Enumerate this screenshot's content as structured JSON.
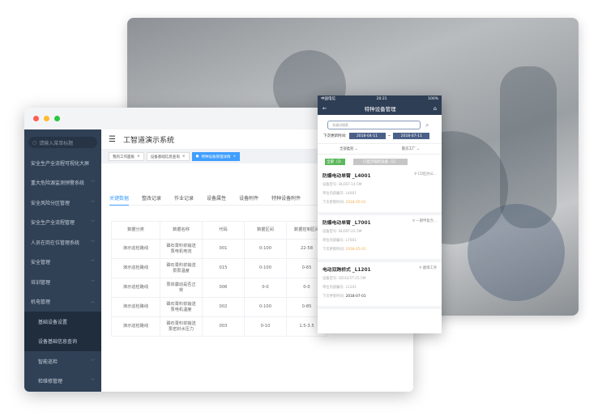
{
  "colors": {
    "sidebar": "#304156",
    "accent": "#409eff",
    "phone_nav": "#2e3e55",
    "green": "#5cb85c",
    "orange": "#f0ad4e"
  },
  "sidebar": {
    "search_placeholder": "请输入菜单标题",
    "items": [
      {
        "label": "安全生产全流程可视化大屏",
        "chevron": ""
      },
      {
        "label": "重大危险源监测预警系统",
        "chevron": "down"
      },
      {
        "label": "安全风险分区管理",
        "chevron": "down"
      },
      {
        "label": "安全生产全流程管理",
        "chevron": "down"
      },
      {
        "label": "人员在岗在位管理系统",
        "chevron": "down"
      },
      {
        "label": "安全管理",
        "chevron": "down"
      },
      {
        "label": "培训管理",
        "chevron": "down"
      },
      {
        "label": "机电管理",
        "chevron": "up"
      }
    ],
    "sub_items": [
      "基础设备设置",
      "设备基础信息查询"
    ],
    "sub_items2": [
      "智能巡检",
      "检维修管理"
    ]
  },
  "header": {
    "title": "工智道演示系统"
  },
  "tags": [
    "我的工作面板",
    "设备基础信息查询",
    "特种设备管理详情"
  ],
  "tabs": [
    "关键数据",
    "整改记录",
    "作业记录",
    "设备属性",
    "设备附件",
    "特种设备附件"
  ],
  "table": {
    "headers": [
      "数据分类",
      "数据名称",
      "代码",
      "数据区间",
      "数据控制区间"
    ],
    "rows": [
      [
        "演示巡检路线",
        "磷石膏料浆输送泵电机电流",
        "001",
        "0-100",
        "22-58"
      ],
      [
        "演示巡检路线",
        "磷石膏料浆输送泵泵温度",
        "015",
        "0-100",
        "0-65"
      ],
      [
        "演示巡检路线",
        "泵体震动是否正常",
        "006",
        "0-0",
        "0-0"
      ],
      [
        "演示巡检路线",
        "磷石膏料浆输送泵电机温度",
        "002",
        "0-100",
        "0-85"
      ],
      [
        "演示巡检路线",
        "磷石膏料浆输送泵密封水压力",
        "003",
        "0-10",
        "1.5-3.5"
      ]
    ]
  },
  "phone": {
    "carrier": "中国电信",
    "time": "20:21",
    "battery": "100%",
    "title": "特种设备管理",
    "search_placeholder": "关键词搜索",
    "date_label": "下次更新时间:",
    "date_from": "2018-04-11",
    "date_sep": "~",
    "date_to": "2018-07-11",
    "filter1": "全部类别",
    "filter2": "南京工厂",
    "btn_all": "全部（3）",
    "btn_only": "只显示临检设备（2）",
    "cards": [
      {
        "name": "防爆电动单臂 _L4001",
        "location": "CO区办公...",
        "model_label": "设备型号:",
        "model": "BLDST-14.5M",
        "code_label": "单位内部编号:",
        "code": "L4001",
        "next_label": "下次更新时间:",
        "next": "2018-05-01",
        "overdue": true
      },
      {
        "name": "防爆电动单臂 _L7001",
        "location": "一期甲复合...",
        "model_label": "设备型号:",
        "model": "BLDST-22.5M",
        "code_label": "单位内部编号:",
        "code": "L7001",
        "next_label": "下次更新时间:",
        "next": "2018-05-01",
        "overdue": true
      },
      {
        "name": "电动双跨桥式 _L1201",
        "location": "磨煤工序",
        "model_label": "设备型号:",
        "model": "QD32/5T-25.5M",
        "code_label": "单位内部编号:",
        "code": "L1201",
        "next_label": "下次更新时间:",
        "next": "2018-07-01",
        "overdue": false
      }
    ]
  }
}
